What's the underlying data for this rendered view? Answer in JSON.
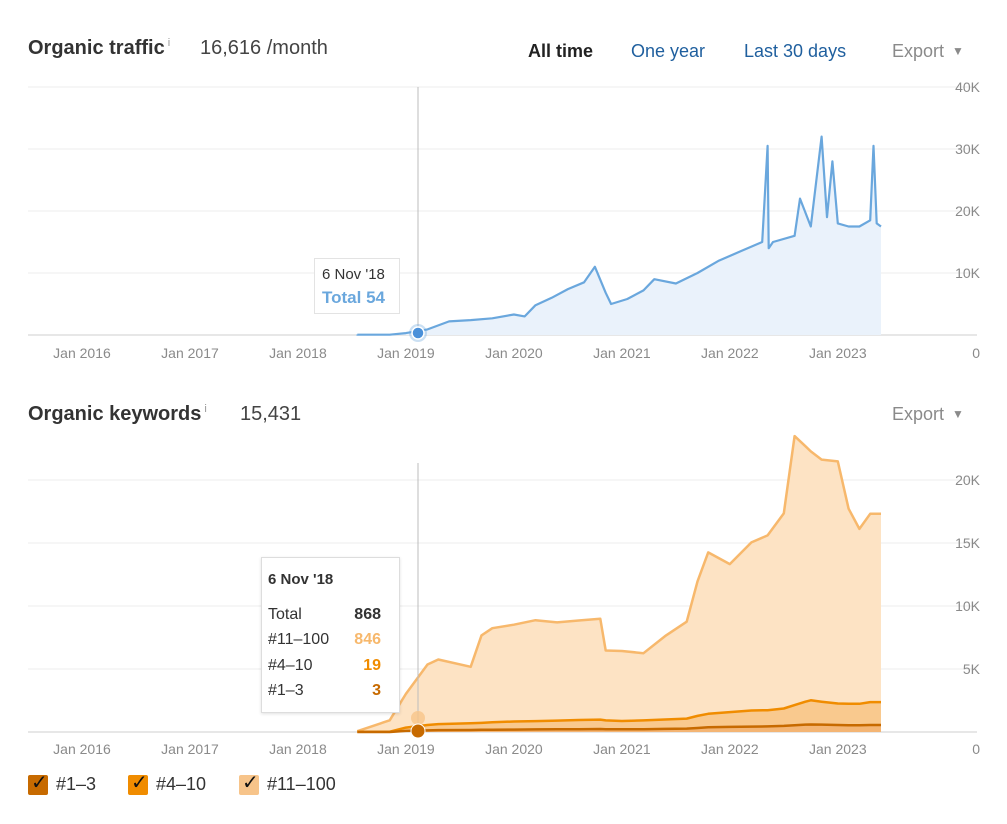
{
  "traffic": {
    "title": "Organic traffic",
    "info": "i",
    "value": "16,616 /month",
    "ranges": [
      "All time",
      "One year",
      "Last 30 days"
    ],
    "active_range": "All time",
    "export": "Export",
    "tooltip": {
      "date": "6 Nov '18",
      "total": "Total 54"
    }
  },
  "keywords": {
    "title": "Organic keywords",
    "info": "i",
    "value": "15,431",
    "export": "Export",
    "tooltip": {
      "date": "6 Nov '18",
      "rows": [
        {
          "label": "Total",
          "value": "868",
          "color": "#333333"
        },
        {
          "label": "#11–100",
          "value": "846",
          "color": "#f7b86c"
        },
        {
          "label": "#4–10",
          "value": "19",
          "color": "#f08c00"
        },
        {
          "label": "#1–3",
          "value": "3",
          "color": "#c76a00"
        }
      ]
    },
    "legend": [
      {
        "label": "#1–3",
        "color": "#c76a00"
      },
      {
        "label": "#4–10",
        "color": "#f08c00"
      },
      {
        "label": "#11–100",
        "color": "#f7c48a"
      }
    ]
  },
  "chart_data": [
    {
      "type": "line",
      "title": "Organic traffic",
      "x_ticks": [
        "Jan 2016",
        "Jan 2017",
        "Jan 2018",
        "Jan 2019",
        "Jan 2020",
        "Jan 2021",
        "Jan 2022",
        "Jan 2023"
      ],
      "y_ticks": [
        "40K",
        "30K",
        "20K",
        "10K",
        "0"
      ],
      "ylim": [
        0,
        40000
      ],
      "xlim": [
        2015.5,
        2023.9
      ],
      "color": "#6aa7dd",
      "series": [
        {
          "x": [
            2018.55,
            2018.85,
            2019.0,
            2019.2,
            2019.4,
            2019.6,
            2019.8,
            2020.0,
            2020.1,
            2020.2,
            2020.35,
            2020.5,
            2020.65,
            2020.75,
            2020.85,
            2020.9,
            2021.05,
            2021.2,
            2021.3,
            2021.5,
            2021.7,
            2021.9,
            2022.1,
            2022.3,
            2022.35,
            2022.36,
            2022.4,
            2022.6,
            2022.65,
            2022.75,
            2022.85,
            2022.9,
            2022.95,
            2023.0,
            2023.1,
            2023.2,
            2023.3,
            2023.33,
            2023.36,
            2023.4
          ],
          "y": [
            50,
            54,
            300,
            900,
            2200,
            2400,
            2700,
            3300,
            3000,
            4800,
            6000,
            7400,
            8500,
            11000,
            6800,
            5000,
            5800,
            7200,
            9000,
            8300,
            10000,
            12000,
            13500,
            15000,
            30500,
            14000,
            15000,
            16000,
            22000,
            17500,
            32000,
            19000,
            28000,
            18000,
            17500,
            17500,
            18500,
            30500,
            18000,
            17500
          ]
        }
      ]
    },
    {
      "type": "area",
      "title": "Organic keywords",
      "x_ticks": [
        "Jan 2016",
        "Jan 2017",
        "Jan 2018",
        "Jan 2019",
        "Jan 2020",
        "Jan 2021",
        "Jan 2022",
        "Jan 2023"
      ],
      "y_ticks": [
        "20K",
        "15K",
        "10K",
        "5K",
        "0"
      ],
      "ylim": [
        0,
        20000
      ],
      "xlim": [
        2015.5,
        2023.9
      ],
      "x": [
        2018.55,
        2018.85,
        2019.0,
        2019.2,
        2019.3,
        2019.6,
        2019.7,
        2019.8,
        2020.0,
        2020.2,
        2020.4,
        2020.6,
        2020.8,
        2020.85,
        2021.0,
        2021.2,
        2021.4,
        2021.6,
        2021.7,
        2021.8,
        2022.0,
        2022.2,
        2022.35,
        2022.5,
        2022.6,
        2022.7,
        2022.75,
        2022.85,
        2023.0,
        2023.1,
        2023.2,
        2023.3,
        2023.4
      ],
      "series": [
        {
          "name": "#11–100",
          "color": "#f7c48a",
          "values": [
            50,
            846,
            2500,
            4500,
            4800,
            4200,
            6500,
            7000,
            7200,
            7500,
            7300,
            7400,
            7500,
            5200,
            5200,
            5000,
            6200,
            7200,
            10000,
            12000,
            11000,
            12500,
            13000,
            14500,
            20000,
            19000,
            18500,
            18000,
            18000,
            14500,
            13000,
            14000,
            14000
          ]
        },
        {
          "name": "#4–10",
          "color": "#f08c00",
          "values": [
            10,
            19,
            250,
            400,
            450,
            500,
            520,
            550,
            600,
            620,
            650,
            680,
            700,
            650,
            620,
            650,
            700,
            750,
            900,
            1000,
            1100,
            1200,
            1200,
            1300,
            1500,
            1700,
            1800,
            1700,
            1600,
            1600,
            1600,
            1700,
            1700
          ]
        },
        {
          "name": "#1–3",
          "color": "#c76a00",
          "values": [
            2,
            3,
            80,
            120,
            140,
            150,
            160,
            170,
            180,
            190,
            200,
            210,
            220,
            210,
            200,
            210,
            230,
            250,
            300,
            350,
            380,
            400,
            420,
            450,
            500,
            550,
            560,
            550,
            520,
            500,
            500,
            520,
            520
          ]
        }
      ]
    }
  ]
}
